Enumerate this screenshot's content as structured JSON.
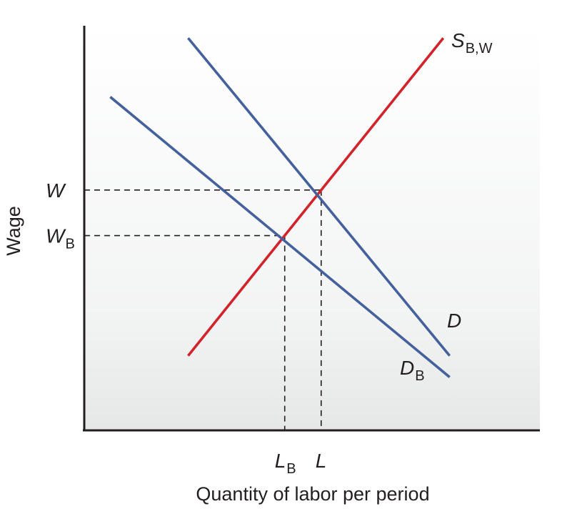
{
  "chart_data": {
    "type": "line",
    "title": "",
    "xlabel": "Quantity of labor per period",
    "ylabel": "Wage",
    "xlim": [
      0,
      10
    ],
    "ylim": [
      0,
      10
    ],
    "grid": false,
    "legend": "none",
    "series": [
      {
        "key": "S",
        "name_main": "S",
        "name_sub": "B,W",
        "color": "#d2232a",
        "points": [
          [
            2.28,
            1.85
          ],
          [
            7.88,
            9.73
          ]
        ]
      },
      {
        "key": "D",
        "name_main": "D",
        "name_sub": "",
        "color": "#44619d",
        "points": [
          [
            2.28,
            9.73
          ],
          [
            8.02,
            1.85
          ]
        ]
      },
      {
        "key": "DB",
        "name_main": "D",
        "name_sub": "B",
        "color": "#44619d",
        "points": [
          [
            0.57,
            8.27
          ],
          [
            8.02,
            1.32
          ]
        ]
      }
    ],
    "equilibria": [
      {
        "x": 5.2,
        "y": 5.96,
        "x_main": "L",
        "x_sub": "",
        "y_main": "W",
        "y_sub": ""
      },
      {
        "x": 4.4,
        "y": 4.83,
        "x_main": "L",
        "x_sub": "B",
        "y_main": "W",
        "y_sub": "B"
      }
    ]
  }
}
